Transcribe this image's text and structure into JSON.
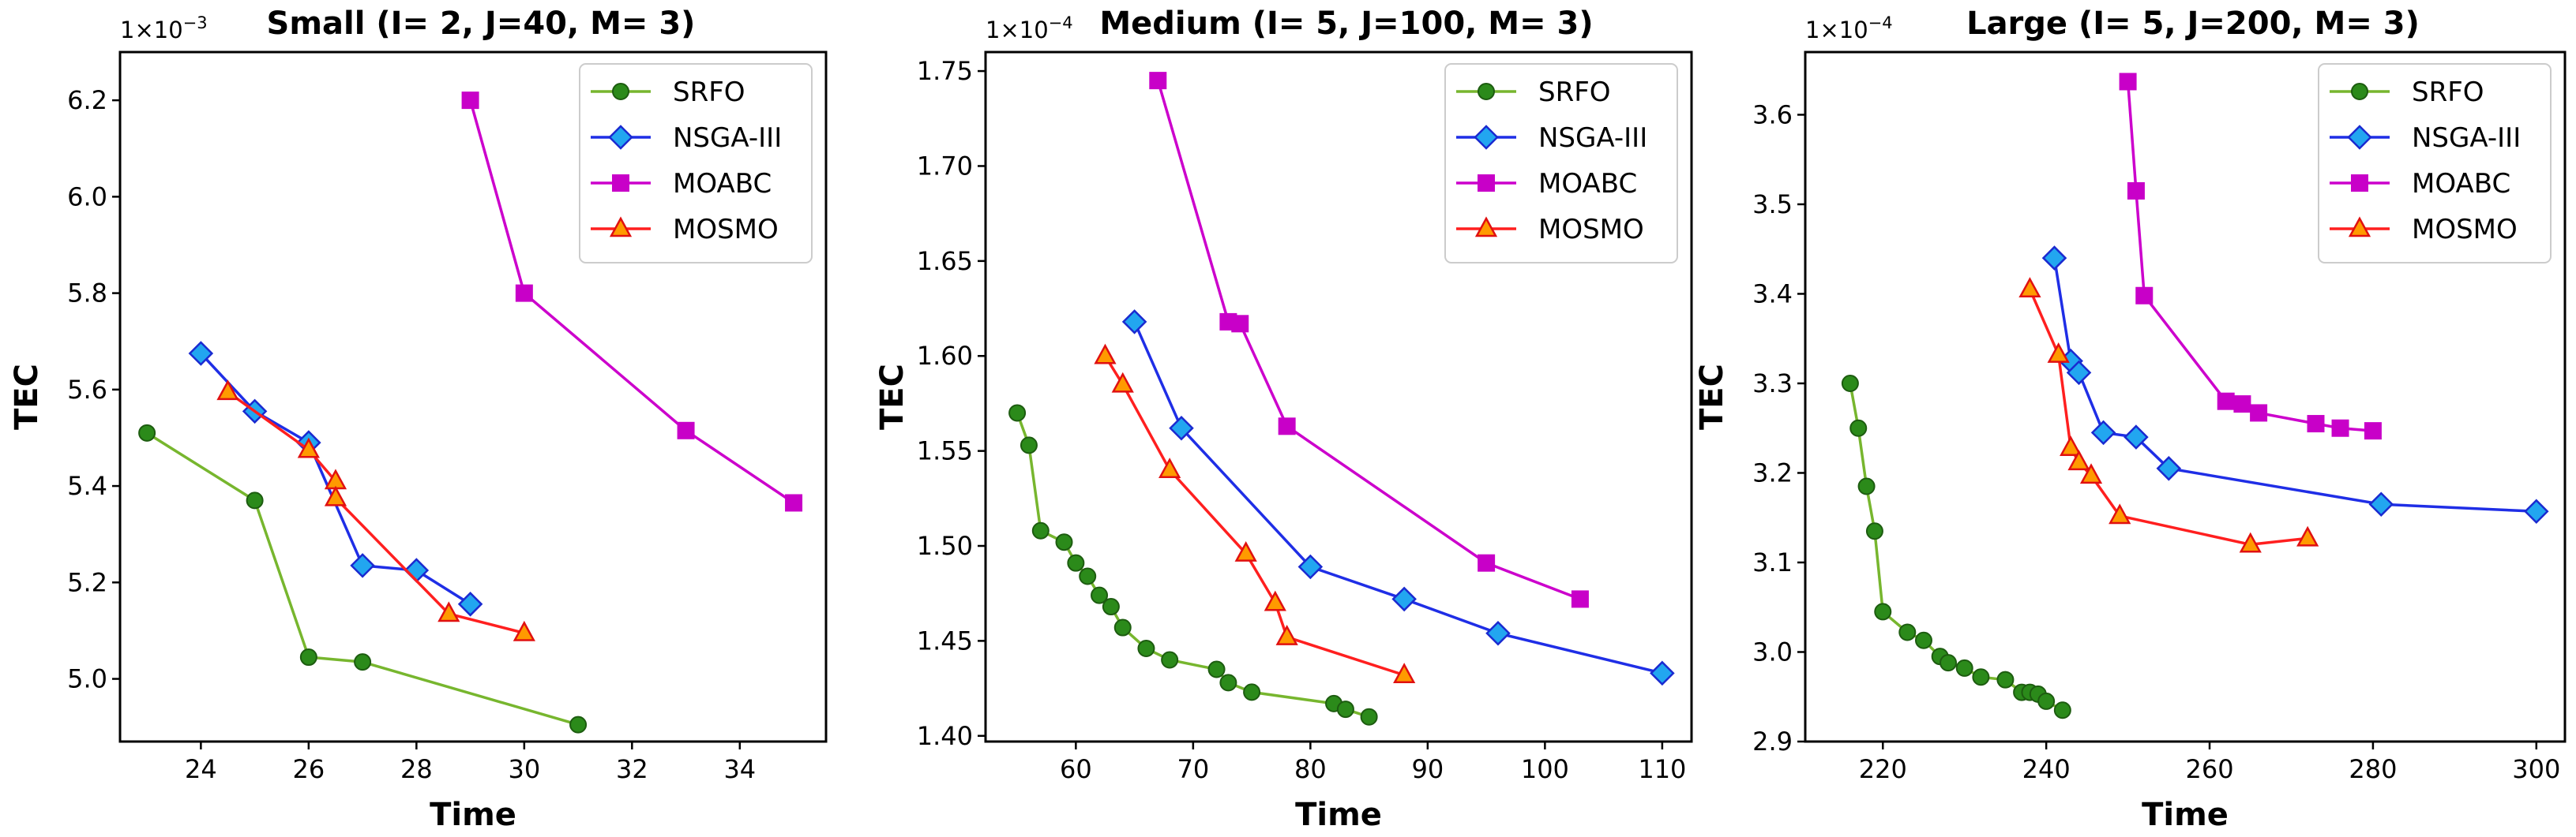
{
  "chart_data": [
    {
      "type": "line",
      "title": "Small (I= 2, J=40, M= 3)",
      "xlabel": "Time",
      "ylabel": "TEC",
      "y_scale_label": "1×10",
      "y_scale_exp": "−3",
      "xlim": [
        22.5,
        35.6
      ],
      "ylim": [
        4.87,
        6.3
      ],
      "xticks": [
        24,
        26,
        28,
        30,
        32,
        34
      ],
      "xtick_labels": [
        "24",
        "26",
        "28",
        "30",
        "32",
        "34"
      ],
      "yticks": [
        5.0,
        5.2,
        5.4,
        5.6,
        5.8,
        6.0,
        6.2
      ],
      "ytick_labels": [
        "5.0",
        "5.2",
        "5.4",
        "5.6",
        "5.8",
        "6.0",
        "6.2"
      ],
      "legend": "top-right",
      "series": [
        {
          "name": "SRFO",
          "color": "#77b62e",
          "marker": "circle",
          "x": [
            23,
            25,
            26,
            27,
            31
          ],
          "y": [
            5.51,
            5.37,
            5.045,
            5.035,
            4.905
          ]
        },
        {
          "name": "NSGA-III",
          "color": "#1f2ee6",
          "marker": "diamond",
          "x": [
            24,
            25,
            26,
            27,
            28,
            29
          ],
          "y": [
            5.675,
            5.555,
            5.49,
            5.235,
            5.225,
            5.155
          ]
        },
        {
          "name": "MOABC",
          "color": "#cc00cc",
          "marker": "square",
          "x": [
            29,
            30,
            33,
            35
          ],
          "y": [
            6.2,
            5.8,
            5.515,
            5.365
          ]
        },
        {
          "name": "MOSMO",
          "color": "#ff1f1f",
          "marker": "triangle",
          "x": [
            24.5,
            26,
            26.5,
            26.5,
            28.6,
            30
          ],
          "y": [
            5.595,
            5.475,
            5.41,
            5.375,
            5.135,
            5.095
          ]
        }
      ]
    },
    {
      "type": "line",
      "title": "Medium (I= 5, J=100, M= 3)",
      "xlabel": "Time",
      "ylabel": "TEC",
      "y_scale_label": "1×10",
      "y_scale_exp": "−4",
      "xlim": [
        52.3,
        112.5
      ],
      "ylim": [
        1.397,
        1.76
      ],
      "xticks": [
        60,
        70,
        80,
        90,
        100,
        110
      ],
      "xtick_labels": [
        "60",
        "70",
        "80",
        "90",
        "100",
        "110"
      ],
      "yticks": [
        1.4,
        1.45,
        1.5,
        1.55,
        1.6,
        1.65,
        1.7,
        1.75
      ],
      "ytick_labels": [
        "1.40",
        "1.45",
        "1.50",
        "1.55",
        "1.60",
        "1.65",
        "1.70",
        "1.75"
      ],
      "legend": "top-right",
      "series": [
        {
          "name": "SRFO",
          "color": "#77b62e",
          "marker": "circle",
          "x": [
            55,
            56,
            57,
            59,
            60,
            61,
            62,
            63,
            64,
            66,
            68,
            72,
            73,
            75,
            82,
            83,
            85
          ],
          "y": [
            1.57,
            1.553,
            1.508,
            1.502,
            1.491,
            1.484,
            1.474,
            1.468,
            1.457,
            1.446,
            1.44,
            1.435,
            1.428,
            1.423,
            1.417,
            1.414,
            1.41
          ]
        },
        {
          "name": "NSGA-III",
          "color": "#1f2ee6",
          "marker": "diamond",
          "x": [
            65,
            69,
            80,
            88,
            96,
            110
          ],
          "y": [
            1.618,
            1.562,
            1.489,
            1.472,
            1.454,
            1.433
          ]
        },
        {
          "name": "MOABC",
          "color": "#cc00cc",
          "marker": "square",
          "x": [
            67,
            73,
            74,
            78,
            95,
            103
          ],
          "y": [
            1.745,
            1.618,
            1.617,
            1.563,
            1.491,
            1.472
          ]
        },
        {
          "name": "MOSMO",
          "color": "#ff1f1f",
          "marker": "triangle",
          "x": [
            62.5,
            64,
            68,
            74.5,
            77,
            78,
            88
          ],
          "y": [
            1.6,
            1.585,
            1.54,
            1.496,
            1.47,
            1.452,
            1.432
          ]
        }
      ]
    },
    {
      "type": "line",
      "title": "Large (I= 5, J=200, M= 3)",
      "xlabel": "Time",
      "ylabel": "TEC",
      "y_scale_label": "1×10",
      "y_scale_exp": "−4",
      "xlim": [
        210.5,
        303.5
      ],
      "ylim": [
        2.9,
        3.67
      ],
      "xticks": [
        220,
        240,
        260,
        280,
        300
      ],
      "xtick_labels": [
        "220",
        "240",
        "260",
        "280",
        "300"
      ],
      "yticks": [
        2.9,
        3.0,
        3.1,
        3.2,
        3.3,
        3.4,
        3.5,
        3.6
      ],
      "ytick_labels": [
        "2.9",
        "3.0",
        "3.1",
        "3.2",
        "3.3",
        "3.4",
        "3.5",
        "3.6"
      ],
      "legend": "top-right",
      "series": [
        {
          "name": "SRFO",
          "color": "#77b62e",
          "marker": "circle",
          "x": [
            216,
            217,
            218,
            219,
            220,
            223,
            225,
            227,
            228,
            230,
            232,
            235,
            237,
            238,
            239,
            240,
            242
          ],
          "y": [
            3.3,
            3.25,
            3.185,
            3.135,
            3.045,
            3.022,
            3.013,
            2.995,
            2.988,
            2.982,
            2.972,
            2.969,
            2.955,
            2.955,
            2.953,
            2.945,
            2.935
          ]
        },
        {
          "name": "NSGA-III",
          "color": "#1f2ee6",
          "marker": "diamond",
          "x": [
            241,
            243,
            244,
            247,
            251,
            255,
            281,
            300
          ],
          "y": [
            3.44,
            3.325,
            3.312,
            3.245,
            3.24,
            3.205,
            3.165,
            3.157
          ]
        },
        {
          "name": "MOABC",
          "color": "#cc00cc",
          "marker": "square",
          "x": [
            250,
            251,
            252,
            262,
            264,
            266,
            273,
            276,
            280
          ],
          "y": [
            3.637,
            3.515,
            3.398,
            3.28,
            3.277,
            3.267,
            3.255,
            3.25,
            3.247
          ]
        },
        {
          "name": "MOSMO",
          "color": "#ff1f1f",
          "marker": "triangle",
          "x": [
            238,
            241.5,
            243,
            244,
            245.5,
            249,
            265,
            272
          ],
          "y": [
            3.405,
            3.332,
            3.228,
            3.212,
            3.197,
            3.152,
            3.12,
            3.127
          ]
        }
      ]
    }
  ]
}
